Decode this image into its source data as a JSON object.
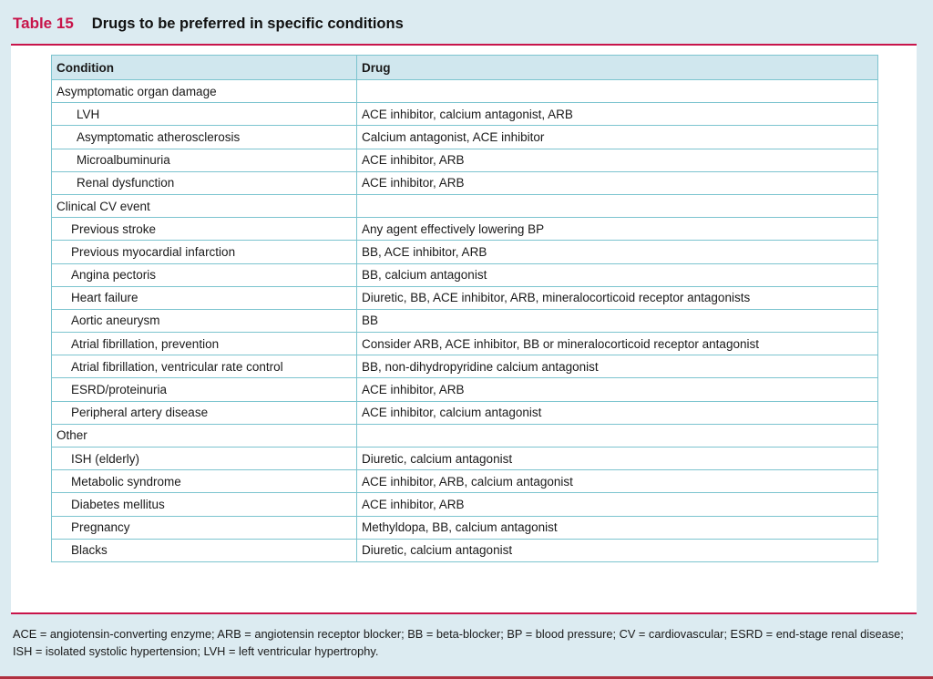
{
  "table": {
    "number": "Table 15",
    "title": "Drugs to be preferred in specific conditions",
    "headers": {
      "condition": "Condition",
      "drug": "Drug"
    },
    "rows": [
      {
        "condition": "Asymptomatic organ damage",
        "drug": "",
        "level": 0
      },
      {
        "condition": "LVH",
        "drug": "ACE inhibitor, calcium antagonist, ARB",
        "level": 2
      },
      {
        "condition": "Asymptomatic atherosclerosis",
        "drug": "Calcium antagonist, ACE inhibitor",
        "level": 2
      },
      {
        "condition": "Microalbuminuria",
        "drug": "ACE inhibitor, ARB",
        "level": 2
      },
      {
        "condition": "Renal dysfunction",
        "drug": "ACE inhibitor, ARB",
        "level": 2
      },
      {
        "condition": "Clinical CV event",
        "drug": "",
        "level": 0
      },
      {
        "condition": "Previous stroke",
        "drug": "Any agent effectively lowering BP",
        "level": 1
      },
      {
        "condition": "Previous myocardial infarction",
        "drug": "BB, ACE inhibitor, ARB",
        "level": 1
      },
      {
        "condition": "Angina pectoris",
        "drug": "BB, calcium antagonist",
        "level": 1
      },
      {
        "condition": "Heart failure",
        "drug": "Diuretic, BB, ACE inhibitor, ARB, mineralocorticoid receptor antagonists",
        "level": 1
      },
      {
        "condition": "Aortic aneurysm",
        "drug": "BB",
        "level": 1
      },
      {
        "condition": "Atrial fibrillation, prevention",
        "drug": "Consider ARB, ACE inhibitor, BB or mineralocorticoid receptor antagonist",
        "level": 1
      },
      {
        "condition": "Atrial fibrillation, ventricular rate control",
        "drug": "BB, non-dihydropyridine calcium antagonist",
        "level": 1
      },
      {
        "condition": "ESRD/proteinuria",
        "drug": "ACE inhibitor, ARB",
        "level": 1
      },
      {
        "condition": "Peripheral artery disease",
        "drug": "ACE inhibitor, calcium antagonist",
        "level": 1
      },
      {
        "condition": "Other",
        "drug": "",
        "level": 0
      },
      {
        "condition": "ISH (elderly)",
        "drug": "Diuretic, calcium antagonist",
        "level": 1
      },
      {
        "condition": "Metabolic syndrome",
        "drug": "ACE inhibitor, ARB, calcium antagonist",
        "level": 1
      },
      {
        "condition": "Diabetes mellitus",
        "drug": "ACE inhibitor, ARB",
        "level": 1
      },
      {
        "condition": "Pregnancy",
        "drug": "Methyldopa, BB, calcium antagonist",
        "level": 1
      },
      {
        "condition": "Blacks",
        "drug": "Diuretic, calcium antagonist",
        "level": 1
      }
    ]
  },
  "footnote": {
    "line1": "ACE = angiotensin-converting enzyme; ARB = angiotensin receptor blocker; BB = beta-blocker; BP = blood pressure; CV = cardiovascular; ESRD = end-stage renal disease;",
    "line2": "ISH = isolated systolic hypertension; LVH = left ventricular hypertrophy."
  },
  "colors": {
    "accent": "#c8144a",
    "frame": "#dcebf1",
    "header": "#d0e7ee",
    "grid": "#7cc4cf"
  }
}
